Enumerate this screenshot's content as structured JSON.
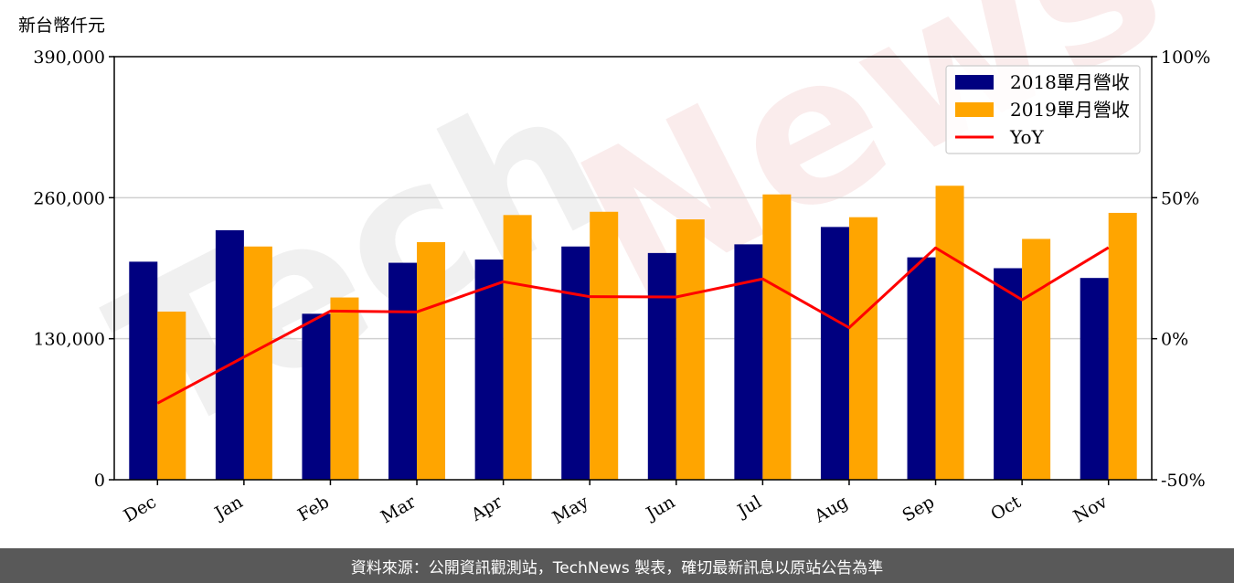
{
  "unit_label": "新台幣仟元",
  "watermark": [
    "Tech",
    "News"
  ],
  "footer": "資料來源：公開資訊觀測站，TechNews 製表，確切最新訊息以原站公告為準",
  "colors": {
    "bar_2018": "#000080",
    "bar_2019": "#FFA500",
    "yoy_line": "#FF0000",
    "grid": "#d0d0d0"
  },
  "chart_data": {
    "type": "bar",
    "categories": [
      "Dec",
      "Jan",
      "Feb",
      "Mar",
      "Apr",
      "May",
      "Jun",
      "Jul",
      "Aug",
      "Sep",
      "Oct",
      "Nov"
    ],
    "series": [
      {
        "name": "2018單月營收",
        "values": [
          201000,
          230000,
          153000,
          200000,
          203000,
          215000,
          209000,
          217000,
          233000,
          205000,
          195000,
          186000
        ]
      },
      {
        "name": "2019單月營收",
        "values": [
          155000,
          215000,
          168000,
          219000,
          244000,
          247000,
          240000,
          263000,
          242000,
          271000,
          222000,
          246000
        ]
      }
    ],
    "line": {
      "name": "YoY",
      "values": [
        -22.9,
        -6.5,
        9.8,
        9.5,
        20.2,
        14.9,
        14.8,
        21.2,
        3.9,
        32.2,
        13.8,
        32.3
      ]
    },
    "ylim": [
      0,
      390000
    ],
    "yticks": [
      "0",
      "130,000",
      "260,000",
      "390,000"
    ],
    "y2lim": [
      -50,
      100
    ],
    "y2ticks": [
      "-50%",
      "0%",
      "50%",
      "100%"
    ],
    "legend": [
      "2018單月營收",
      "2019單月營收",
      "YoY"
    ],
    "legend_position": "top-right",
    "grid": "horizontal"
  }
}
